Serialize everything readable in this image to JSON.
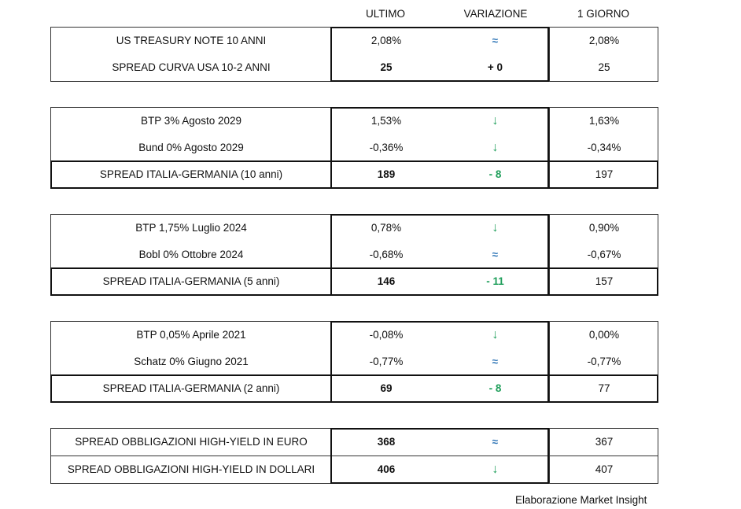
{
  "headers": {
    "ultimo": "ULTIMO",
    "variazione": "VARIAZIONE",
    "giorno": "1 GIORNO"
  },
  "colors": {
    "down": "#1e9e5a",
    "unchanged": "#2e75b6"
  },
  "blocks": [
    {
      "rows": [
        {
          "label": "US TREASURY NOTE 10 ANNI",
          "ultimo": "2,08%",
          "var": "≈",
          "var_icon": "approx-icon",
          "giorno": "2,08%"
        },
        {
          "label": "SPREAD CURVA USA 10-2 ANNI",
          "ultimo": "25",
          "var": "+ 0",
          "giorno": "25",
          "total": false
        }
      ]
    },
    {
      "rows": [
        {
          "label": "BTP 3% Agosto 2029",
          "ultimo": "1,53%",
          "var": "↓",
          "var_icon": "arrow-down-icon",
          "giorno": "1,63%"
        },
        {
          "label": "Bund 0% Agosto 2029",
          "ultimo": "-0,36%",
          "var": "↓",
          "var_icon": "arrow-down-icon",
          "giorno": "-0,34%"
        },
        {
          "label": "SPREAD ITALIA-GERMANIA (10 anni)",
          "ultimo": "189",
          "var": "- 8",
          "giorno": "197",
          "total": true
        }
      ]
    },
    {
      "rows": [
        {
          "label": "BTP 1,75% Luglio 2024",
          "ultimo": "0,78%",
          "var": "↓",
          "var_icon": "arrow-down-icon",
          "giorno": "0,90%"
        },
        {
          "label": "Bobl 0% Ottobre 2024",
          "ultimo": "-0,68%",
          "var": "≈",
          "var_icon": "approx-icon",
          "giorno": "-0,67%"
        },
        {
          "label": "SPREAD ITALIA-GERMANIA (5 anni)",
          "ultimo": "146",
          "var": "- 11",
          "giorno": "157",
          "total": true
        }
      ]
    },
    {
      "rows": [
        {
          "label": "BTP 0,05% Aprile 2021",
          "ultimo": "-0,08%",
          "var": "↓",
          "var_icon": "arrow-down-icon",
          "giorno": "0,00%"
        },
        {
          "label": "Schatz 0% Giugno 2021",
          "ultimo": "-0,77%",
          "var": "≈",
          "var_icon": "approx-icon",
          "giorno": "-0,77%"
        },
        {
          "label": "SPREAD ITALIA-GERMANIA (2 anni)",
          "ultimo": "69",
          "var": "- 8",
          "giorno": "77",
          "total": true
        }
      ]
    },
    {
      "rows": [
        {
          "label": "SPREAD OBBLIGAZIONI HIGH-YIELD IN EURO",
          "ultimo": "368",
          "var": "≈",
          "var_icon": "approx-icon",
          "giorno": "367",
          "bold": true
        },
        {
          "label": "SPREAD OBBLIGAZIONI HIGH-YIELD IN DOLLARI",
          "ultimo": "406",
          "var": "↓",
          "var_icon": "arrow-down-icon",
          "giorno": "407",
          "bold": true
        }
      ]
    }
  ],
  "footer": "Elaborazione Market Insight"
}
